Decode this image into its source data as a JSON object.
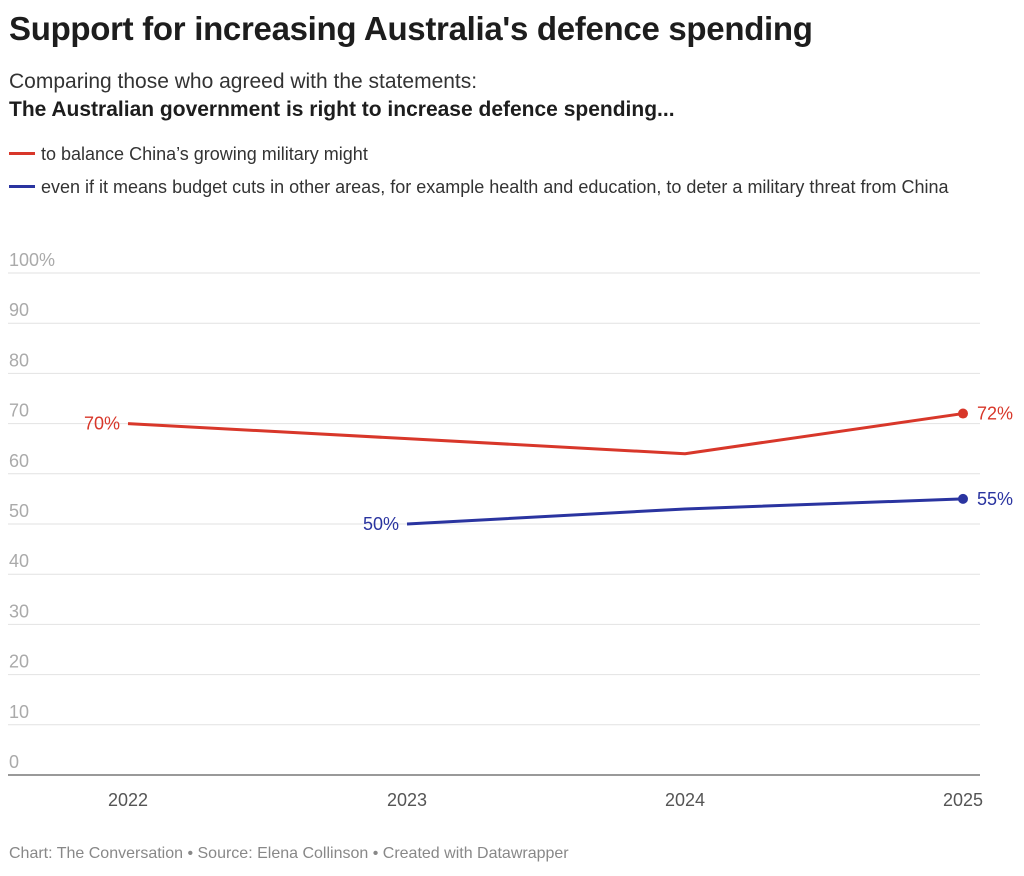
{
  "header": {
    "title": "Support for increasing Australia's defence spending",
    "subtitle": "Comparing those who agreed with the statements:",
    "subtitle_bold": "The Australian government is right to increase defence spending..."
  },
  "colors": {
    "red": "#d8372a",
    "blue": "#2a34a0",
    "grid": "#e2e2e2",
    "tick": "#aaaaaa"
  },
  "chart_data": {
    "type": "line",
    "x": [
      "2022",
      "2023",
      "2024",
      "2025"
    ],
    "ylim": [
      0,
      100
    ],
    "yticks": [
      "0",
      "10",
      "20",
      "30",
      "40",
      "50",
      "60",
      "70",
      "80",
      "90",
      "100%"
    ],
    "grid": true,
    "legend_position": "top-left",
    "series": [
      {
        "name": "to balance China’s growing military might",
        "color": "#d8372a",
        "values": [
          70,
          67,
          64,
          72
        ],
        "labels": {
          "0": "70%",
          "3": "72%"
        }
      },
      {
        "name": "even if it means budget cuts in other areas, for example health and education, to deter a military threat from China",
        "color": "#2a34a0",
        "values": [
          null,
          50,
          53,
          55
        ],
        "labels": {
          "1": "50%",
          "3": "55%"
        }
      }
    ]
  },
  "footer": "Chart: The Conversation • Source: Elena Collinson • Created with Datawrapper"
}
